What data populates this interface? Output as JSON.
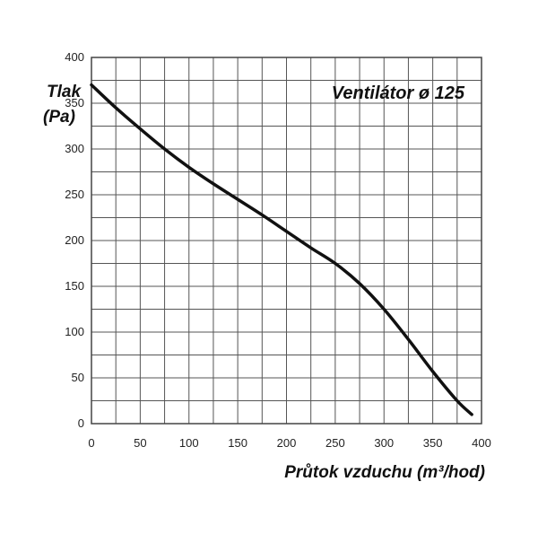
{
  "chart_data": {
    "type": "line",
    "title": "Ventilátor ø 125",
    "ylabel_line1": "Tlak",
    "ylabel_line2": "(Pa)",
    "xlabel": "Průtok vzduchu (m³/hod)",
    "xlim": [
      0,
      400
    ],
    "ylim": [
      0,
      400
    ],
    "x_ticks": [
      0,
      50,
      100,
      150,
      200,
      250,
      300,
      350,
      400
    ],
    "y_ticks": [
      0,
      50,
      100,
      150,
      200,
      250,
      300,
      350,
      400
    ],
    "grid": true,
    "grid_x_step": 25,
    "grid_y_step": 25,
    "series": [
      {
        "x": [
          0,
          25,
          50,
          75,
          100,
          125,
          150,
          175,
          200,
          225,
          250,
          275,
          300,
          325,
          350,
          375,
          390
        ],
        "y": [
          370,
          345,
          322,
          300,
          280,
          262,
          245,
          228,
          210,
          192,
          175,
          153,
          125,
          92,
          57,
          25,
          10
        ]
      }
    ]
  }
}
